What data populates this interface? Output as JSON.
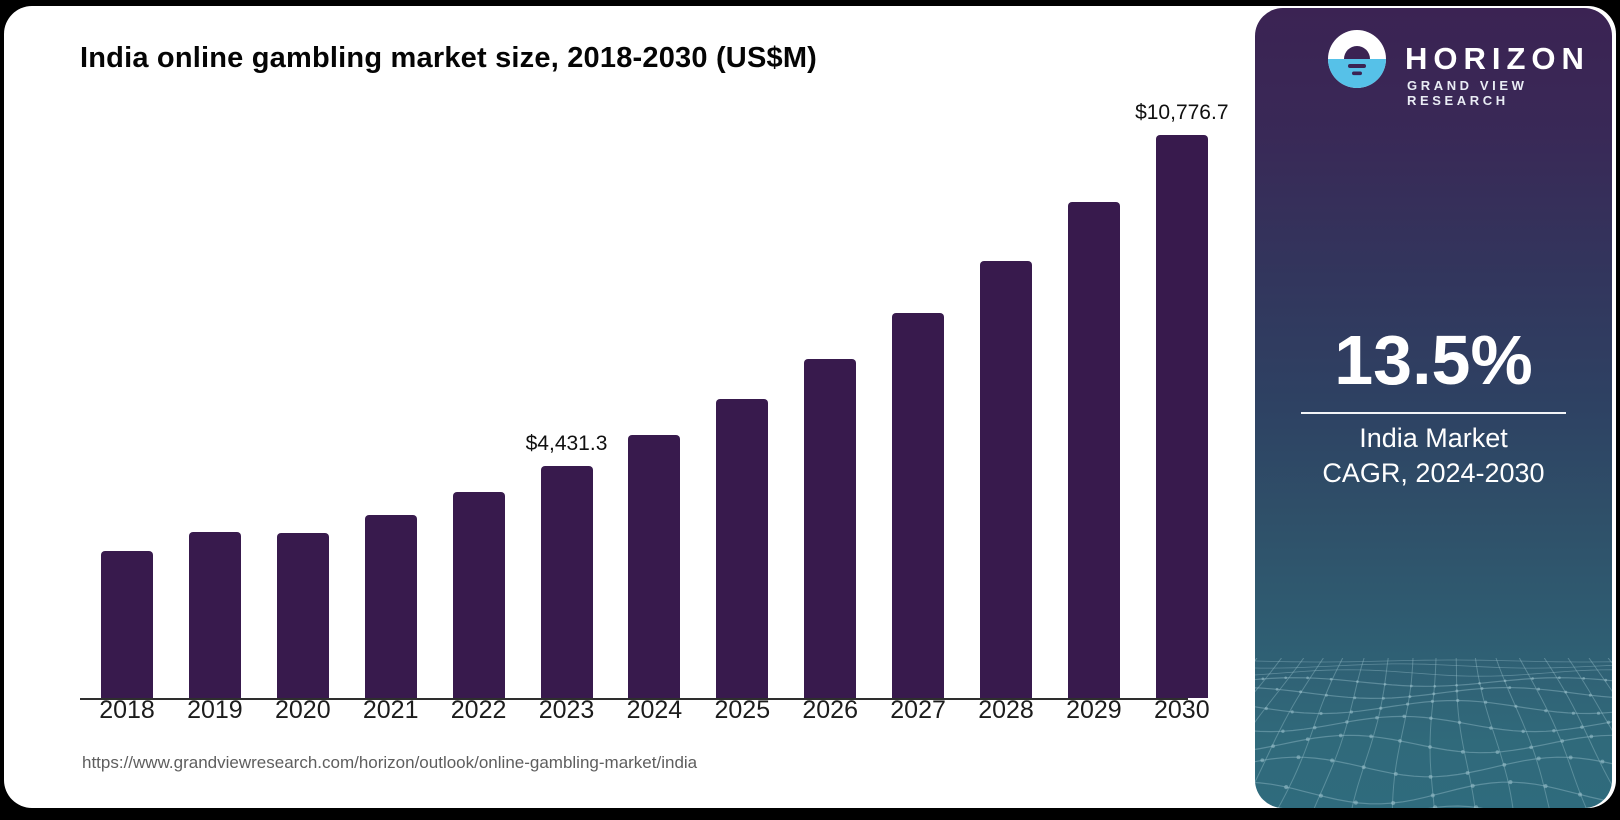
{
  "page": {
    "title": "India online gambling market size, 2018-2030 (US$M)",
    "source_url": "https://www.grandviewresearch.com/horizon/outlook/online-gambling-market/india"
  },
  "chart_data": {
    "type": "bar",
    "title": "India online gambling market size, 2018-2030 (US$M)",
    "unit": "US$M",
    "categories": [
      "2018",
      "2019",
      "2020",
      "2021",
      "2022",
      "2023",
      "2024",
      "2025",
      "2026",
      "2027",
      "2028",
      "2029",
      "2030"
    ],
    "values": [
      2815,
      3180,
      3160,
      3505,
      3945,
      4431.3,
      5040,
      5720,
      6495,
      7370,
      8365,
      9495,
      10776.7
    ],
    "data_labels": {
      "2023": "$4,431.3",
      "2030": "$10,776.7"
    },
    "xlabel": "",
    "ylabel": "",
    "ylim": [
      0,
      10776.7
    ],
    "grid": false,
    "legend": false,
    "bar_color": "#381a4d",
    "axis_color": "#2e2e2e"
  },
  "sidebar": {
    "brand": {
      "name": "HORIZON",
      "subtitle": "GRAND VIEW RESEARCH"
    },
    "stat": {
      "value": "13.5%",
      "label_line1": "India Market",
      "label_line2": "CAGR, 2024-2030"
    },
    "colors": {
      "gradient_top": "#3b2353",
      "gradient_middle": "#2e4263",
      "gradient_bottom": "#2f6b7d",
      "logo_blue": "#56c1e8",
      "mesh_line": "#9cc2cd"
    }
  }
}
